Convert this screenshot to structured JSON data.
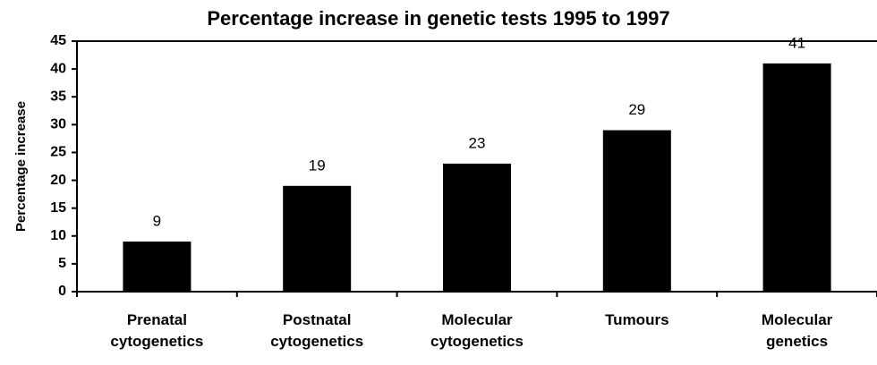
{
  "chart_data": {
    "type": "bar",
    "title": "Percentage increase in genetic tests 1995 to 1997",
    "y_label": "Percentage increase",
    "categories": [
      "Prenatal cytogenetics",
      "Postnatal cytogenetics",
      "Molecular cytogenetics",
      "Tumours",
      "Molecular genetics"
    ],
    "values": [
      9,
      19,
      23,
      29,
      41
    ],
    "color": "#000000",
    "ylim": [
      0,
      45
    ],
    "yticks": [
      0,
      5,
      10,
      15,
      20,
      25,
      30,
      35,
      40,
      45
    ],
    "grid": false
  }
}
